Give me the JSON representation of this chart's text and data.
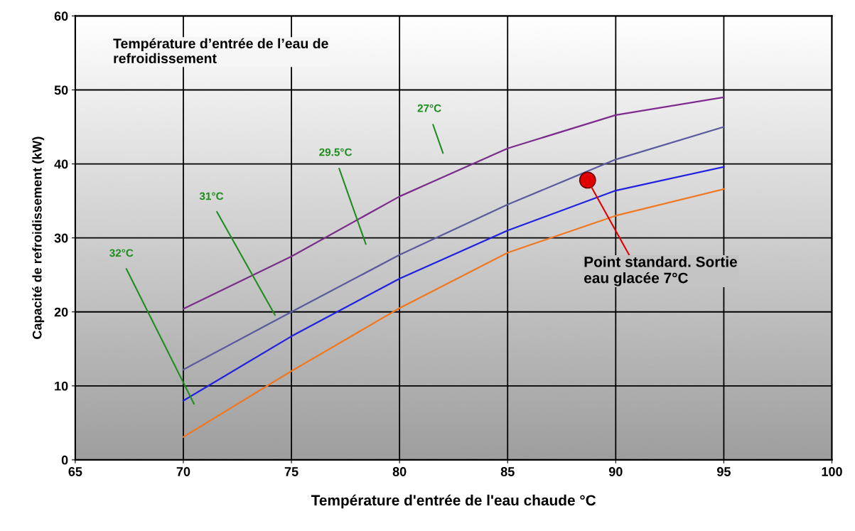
{
  "chart_data": {
    "type": "line",
    "xlabel": "Température d'entrée de l'eau chaude °C",
    "ylabel": "Capacité de refroidissement (kW)",
    "x": [
      70,
      75,
      80,
      85,
      90,
      95
    ],
    "series": [
      {
        "color": "#7b2c8c",
        "values": [
          20.4,
          27.5,
          35.6,
          42.1,
          46.6,
          49.0
        ]
      },
      {
        "color": "#5a5a9e",
        "values": [
          12.2,
          20.0,
          27.7,
          34.5,
          40.6,
          45.0
        ]
      },
      {
        "color": "#2020e0",
        "values": [
          8.0,
          16.7,
          24.5,
          31.0,
          36.4,
          39.6
        ]
      },
      {
        "color": "#f07820",
        "values": [
          3.1,
          12.0,
          20.5,
          28.0,
          33.0,
          36.6
        ]
      },
      {
        "type": "scatter",
        "color": "#e00000",
        "marker": "circle",
        "x": [
          88.7
        ],
        "values": [
          37.8
        ]
      }
    ],
    "xlim": [
      65,
      100
    ],
    "xticks": [
      65,
      70,
      75,
      80,
      85,
      90,
      95,
      100
    ],
    "ylim": [
      0,
      60
    ],
    "yticks": [
      0,
      10,
      20,
      30,
      40,
      50,
      60
    ],
    "grid": true,
    "marker": "none",
    "line_style": "solid",
    "annotations": [
      "Température d’entrée de l’eau de\nrefroidissement",
      "27°C",
      "29.5°C",
      "31°C",
      "32°C",
      {
        "text": "Point standard. Sortie\neau glacée 7°C",
        "x": 88.7,
        "y": 37.8
      }
    ]
  }
}
